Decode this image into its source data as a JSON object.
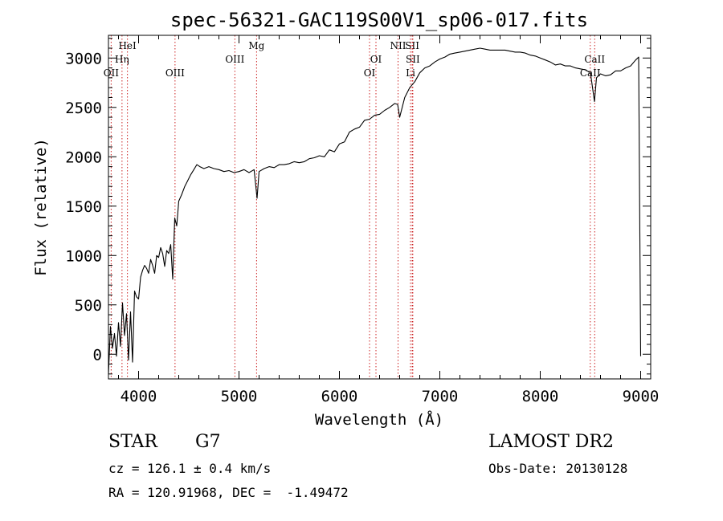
{
  "chart_data": {
    "type": "line",
    "title": "spec-56321-GAC119S00V1_sp06-017.fits",
    "xlabel": "Wavelength (Å)",
    "ylabel": "Flux (relative)",
    "xlim": [
      3700,
      9100
    ],
    "ylim": [
      -250,
      3230
    ],
    "xticks": [
      "4000",
      "5000",
      "6000",
      "7000",
      "8000",
      "9000"
    ],
    "yticks": [
      "0",
      "500",
      "1000",
      "1500",
      "2000",
      "2500",
      "3000"
    ],
    "grid": false,
    "series": [
      {
        "x": [
          3700,
          3720,
          3740,
          3760,
          3780,
          3800,
          3820,
          3840,
          3860,
          3880,
          3900,
          3920,
          3940,
          3960,
          3980,
          4000,
          4020,
          4040,
          4060,
          4080,
          4100,
          4120,
          4140,
          4160,
          4180,
          4200,
          4220,
          4240,
          4260,
          4280,
          4300,
          4320,
          4340,
          4360,
          4380,
          4400,
          4430,
          4460,
          4490,
          4520,
          4550,
          4580,
          4610,
          4650,
          4700,
          4750,
          4800,
          4850,
          4900,
          4950,
          5000,
          5050,
          5100,
          5150,
          5180,
          5200,
          5250,
          5300,
          5350,
          5400,
          5450,
          5500,
          5550,
          5600,
          5650,
          5700,
          5750,
          5800,
          5850,
          5900,
          5950,
          6000,
          6050,
          6100,
          6150,
          6200,
          6250,
          6300,
          6350,
          6400,
          6450,
          6500,
          6550,
          6580,
          6600,
          6650,
          6700,
          6750,
          6800,
          6850,
          6900,
          6950,
          7000,
          7050,
          7100,
          7150,
          7200,
          7250,
          7300,
          7350,
          7400,
          7450,
          7500,
          7550,
          7600,
          7650,
          7700,
          7750,
          7800,
          7850,
          7900,
          7950,
          8000,
          8050,
          8100,
          8150,
          8200,
          8250,
          8300,
          8350,
          8400,
          8450,
          8500,
          8540,
          8560,
          8600,
          8650,
          8700,
          8750,
          8800,
          8850,
          8900,
          8950,
          8980,
          9000
        ],
        "y": [
          -200,
          280,
          60,
          210,
          -20,
          320,
          80,
          520,
          190,
          410,
          -60,
          430,
          -80,
          640,
          580,
          560,
          780,
          850,
          900,
          870,
          820,
          960,
          900,
          820,
          1000,
          980,
          1080,
          1020,
          890,
          1050,
          1020,
          1110,
          760,
          1380,
          1300,
          1550,
          1620,
          1700,
          1760,
          1820,
          1870,
          1920,
          1900,
          1880,
          1900,
          1880,
          1870,
          1850,
          1860,
          1840,
          1850,
          1870,
          1840,
          1870,
          1580,
          1850,
          1880,
          1900,
          1890,
          1920,
          1920,
          1930,
          1950,
          1940,
          1950,
          1980,
          1990,
          2010,
          2000,
          2070,
          2050,
          2130,
          2150,
          2250,
          2280,
          2300,
          2370,
          2380,
          2420,
          2430,
          2470,
          2500,
          2540,
          2530,
          2400,
          2600,
          2700,
          2760,
          2850,
          2900,
          2920,
          2960,
          2990,
          3010,
          3040,
          3050,
          3060,
          3070,
          3080,
          3090,
          3100,
          3090,
          3080,
          3080,
          3080,
          3080,
          3070,
          3060,
          3060,
          3050,
          3030,
          3020,
          3000,
          2980,
          2960,
          2930,
          2940,
          2920,
          2920,
          2900,
          2890,
          2880,
          2850,
          2560,
          2800,
          2840,
          2820,
          2830,
          2870,
          2870,
          2900,
          2920,
          2980,
          3010,
          -20
        ]
      }
    ],
    "lines": [
      {
        "name": "HeI",
        "x": 3889,
        "row": 0
      },
      {
        "name": "Hη",
        "x": 3835,
        "row": 1
      },
      {
        "name": "OII",
        "x": 3727,
        "row": 2
      },
      {
        "name": "OIII",
        "x": 4363,
        "row": 2
      },
      {
        "name": "OIII",
        "x": 4959,
        "row": 1
      },
      {
        "name": "Mg",
        "x": 5175,
        "row": 0
      },
      {
        "name": "OI",
        "x": 6364,
        "row": 1
      },
      {
        "name": "OI",
        "x": 6300,
        "row": 2
      },
      {
        "name": "NII",
        "x": 6584,
        "row": 0
      },
      {
        "name": "SII",
        "x": 6725,
        "row": 0
      },
      {
        "name": "SII",
        "x": 6731,
        "row": 1
      },
      {
        "name": "Li",
        "x": 6708,
        "row": 2
      },
      {
        "name": "CaII",
        "x": 8542,
        "row": 1
      },
      {
        "name": "CaII",
        "x": 8498,
        "row": 2
      }
    ]
  },
  "info": {
    "class": "STAR",
    "subclass": "G7",
    "survey": "LAMOST DR2",
    "cz": "cz = 126.1 ± 0.4 km/s",
    "obs_date": "Obs-Date: 20130128",
    "radec": "RA = 120.91968, DEC =  -1.49472"
  }
}
